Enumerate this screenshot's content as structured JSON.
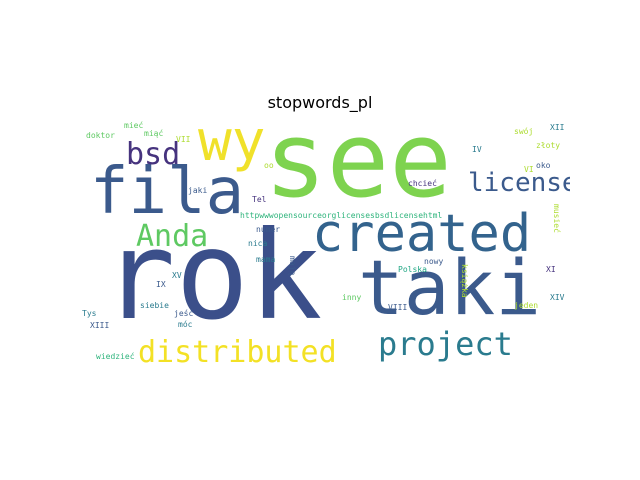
{
  "title": "stopwords_pl",
  "words": {
    "see": {
      "text": "see",
      "color": "#7ed34f"
    },
    "rok": {
      "text": "rok",
      "color": "#3b4f8a"
    },
    "taki": {
      "text": "taki",
      "color": "#3b5a8c"
    },
    "fila": {
      "text": "fila",
      "color": "#3b5a8c"
    },
    "created": {
      "text": "created",
      "color": "#33638d"
    },
    "wy": {
      "text": "wy",
      "color": "#f0e12a"
    },
    "bsd": {
      "text": "bsd",
      "color": "#46337e"
    },
    "license": {
      "text": "license",
      "color": "#3b5a8c"
    },
    "anda": {
      "text": "Anda",
      "color": "#5ec962"
    },
    "distributed": {
      "text": "distributed",
      "color": "#f3e125"
    },
    "project": {
      "text": "project",
      "color": "#2a7b8e"
    },
    "http": {
      "text": "httpwwwopensourceorglicensesbsdlicensehtml",
      "color": "#2fb47c"
    },
    "tel": {
      "text": "Tel",
      "color": "#46337e"
    },
    "chciec": {
      "text": "chcieć",
      "color": "#46337e"
    },
    "jaki": {
      "text": "jaki",
      "color": "#3b5a8c"
    },
    "numer": {
      "text": "numer",
      "color": "#3b5a8c"
    },
    "nica": {
      "text": "nica",
      "color": "#2a7b8e"
    },
    "maja": {
      "text": "mają",
      "color": "#3b5a8c"
    },
    "mama": {
      "text": "mama",
      "color": "#2a7b8e"
    },
    "nowy": {
      "text": "nowy",
      "color": "#3b5a8c"
    },
    "polska": {
      "text": "Polska",
      "color": "#22a785"
    },
    "xv": {
      "text": "XV",
      "color": "#2a7b8e"
    },
    "ix": {
      "text": "IX",
      "color": "#3b5a8c"
    },
    "siebie": {
      "text": "siebie",
      "color": "#2a7b8e"
    },
    "jesc": {
      "text": "jeść",
      "color": "#3b5a8c"
    },
    "moc": {
      "text": "móc",
      "color": "#2a7b8e"
    },
    "tys": {
      "text": "Tys",
      "color": "#2a7b8e"
    },
    "xiii": {
      "text": "XIII",
      "color": "#3b5a8c"
    },
    "wiedziec": {
      "text": "wiedzieć",
      "color": "#2fb47c"
    },
    "inny": {
      "text": "inny",
      "color": "#5ec962"
    },
    "viii": {
      "text": "VIII",
      "color": "#3b5a8c"
    },
    "jeden": {
      "text": "jeden",
      "color": "#addc30"
    },
    "xi": {
      "text": "XI",
      "color": "#46337e"
    },
    "xiv": {
      "text": "XIV",
      "color": "#2a7b8e"
    },
    "iv": {
      "text": "IV",
      "color": "#2a7b8e"
    },
    "vi": {
      "text": "VI",
      "color": "#addc30"
    },
    "oko": {
      "text": "oko",
      "color": "#3b5a8c"
    },
    "xii": {
      "text": "XII",
      "color": "#2a7b8e"
    },
    "swoj": {
      "text": "swój",
      "color": "#addc30"
    },
    "zloty": {
      "text": "złoty",
      "color": "#addc30"
    },
    "doktor": {
      "text": "doktor",
      "color": "#5ec962"
    },
    "miec": {
      "text": "mieć",
      "color": "#5ec962"
    },
    "miac": {
      "text": "miąć",
      "color": "#5ec962"
    },
    "vii": {
      "text": "VII",
      "color": "#addc30"
    },
    "oo": {
      "text": "oo",
      "color": "#addc30"
    },
    "musiec": {
      "text": "musieć",
      "color": "#addc30"
    },
    "ksiazka": {
      "text": "książka",
      "color": "#addc30"
    }
  }
}
